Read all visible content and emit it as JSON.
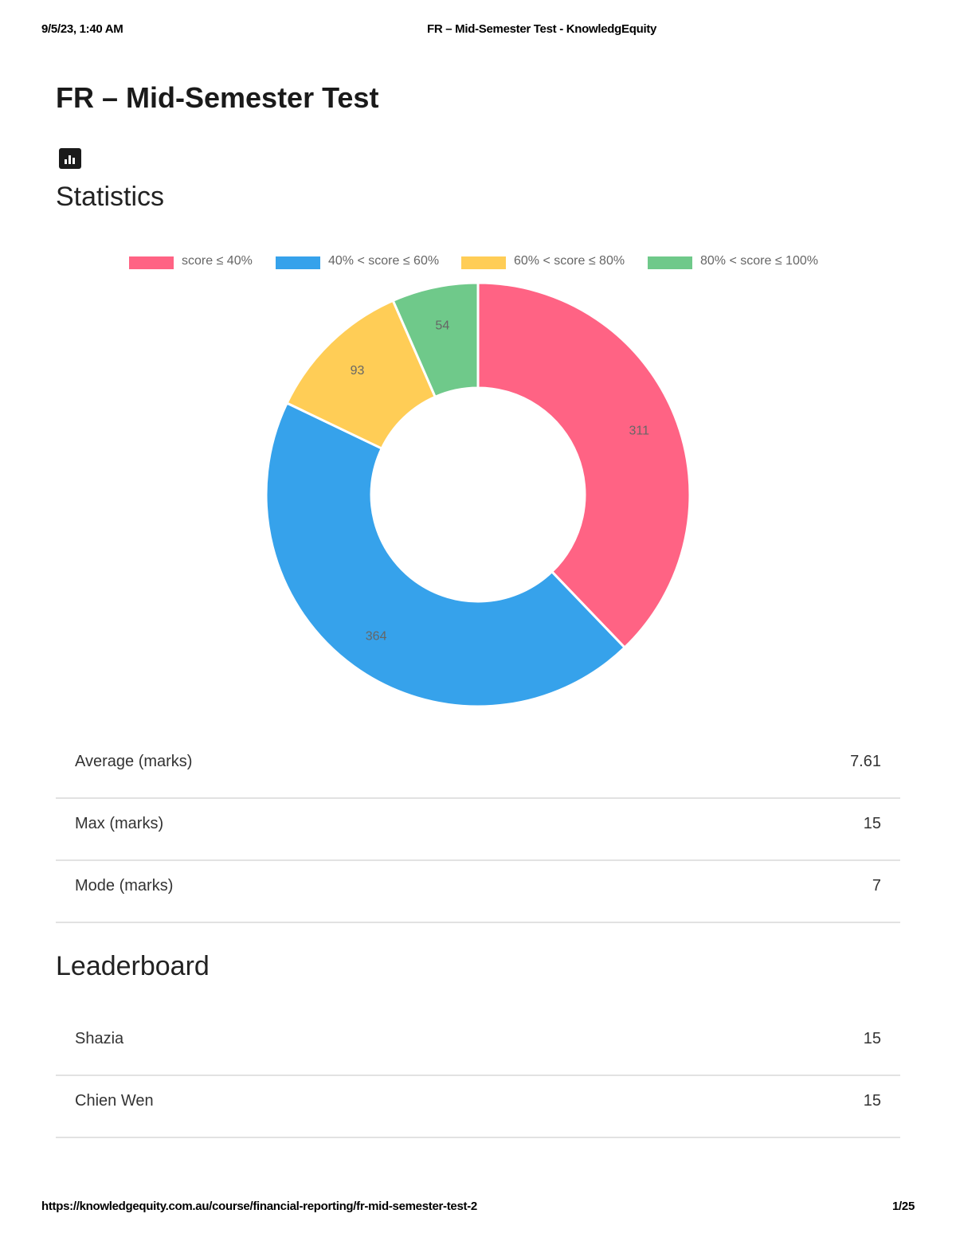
{
  "print_header": {
    "date": "9/5/23, 1:40 AM",
    "title": "FR – Mid-Semester Test - KnowledgEquity"
  },
  "page_title": "FR – Mid-Semester Test",
  "statistics": {
    "icon": "bar-chart-icon",
    "title": "Statistics",
    "rows": [
      {
        "label": "Average (marks)",
        "value": "7.61"
      },
      {
        "label": "Max (marks)",
        "value": "15"
      },
      {
        "label": "Mode (marks)",
        "value": "7"
      }
    ]
  },
  "chart_data": {
    "type": "pie",
    "donut": true,
    "legend_position": "top",
    "labels": [
      "score ≤  40%",
      "40% < score ≤ 60%",
      "60% < score ≤ 80%",
      "80% < score ≤ 100%"
    ],
    "values": [
      311,
      364,
      93,
      54
    ],
    "colors": [
      "#ff6384",
      "#36a2eb",
      "#ffcd56",
      "#6fc98a"
    ]
  },
  "leaderboard": {
    "title": "Leaderboard",
    "rows": [
      {
        "name": "Shazia",
        "score": "15"
      },
      {
        "name": "Chien Wen",
        "score": "15"
      }
    ]
  },
  "print_footer": {
    "url": "https://knowledgequity.com.au/course/financial-reporting/fr-mid-semester-test-2",
    "page": "1/25"
  }
}
